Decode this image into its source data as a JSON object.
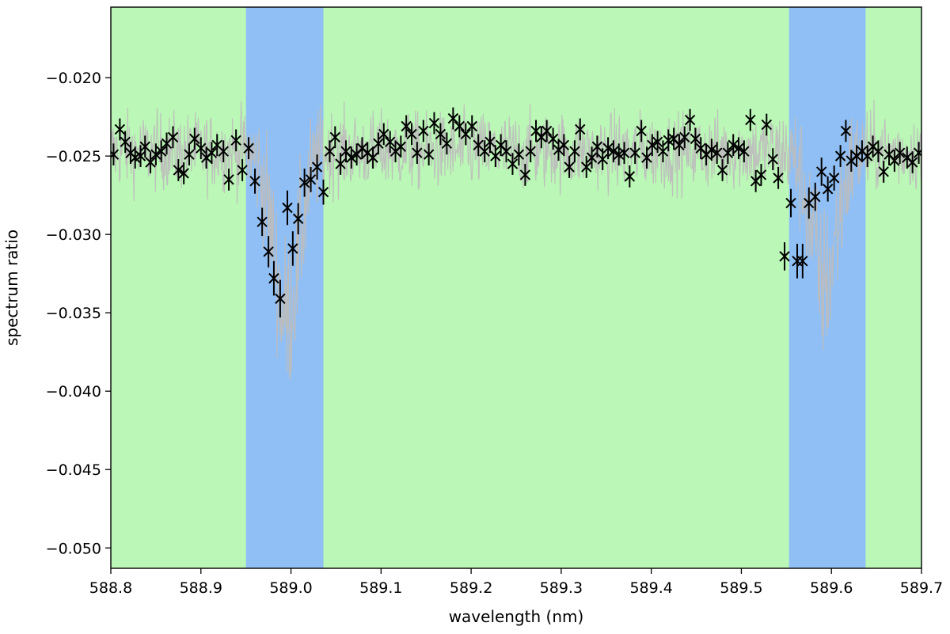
{
  "chart_data": {
    "type": "scatter",
    "title": "",
    "xlabel": "wavelength (nm)",
    "ylabel": "spectrum ratio",
    "xlim": [
      588.8,
      589.7
    ],
    "ylim": [
      -0.0513,
      -0.0155
    ],
    "grid": false,
    "legend": "none",
    "x_ticks": [
      588.8,
      588.9,
      589.0,
      589.1,
      589.2,
      589.3,
      589.4,
      589.5,
      589.6,
      589.7
    ],
    "x_tick_labels": [
      "588.8",
      "588.9",
      "589.0",
      "589.1",
      "589.2",
      "589.3",
      "589.4",
      "589.5",
      "589.6",
      "589.7"
    ],
    "y_ticks": [
      -0.02,
      -0.025,
      -0.03,
      -0.035,
      -0.04,
      -0.045,
      -0.05
    ],
    "y_tick_labels": [
      "−0.020",
      "−0.025",
      "−0.030",
      "−0.035",
      "−0.040",
      "−0.045",
      "−0.050"
    ],
    "background_color": "#bbf7b6",
    "bands": [
      {
        "x_start": 588.95,
        "x_end": 589.036,
        "color": "#90bff5"
      },
      {
        "x_start": 589.553,
        "x_end": 589.638,
        "color": "#90bff5"
      }
    ],
    "raw_spectrum": {
      "color": "#bdbdbd",
      "baseline": -0.0247,
      "noise_amplitude": 0.0022,
      "x_range": [
        588.8,
        589.7
      ],
      "absorption_lines": [
        {
          "center": 588.995,
          "depth": 0.0105,
          "width": 0.014
        },
        {
          "center": 589.592,
          "depth": 0.0085,
          "width": 0.014
        }
      ]
    },
    "binned_series": {
      "marker": "x",
      "color": "#000000",
      "points": [
        [
          588.803,
          -0.0249,
          0.0007
        ],
        [
          588.81,
          -0.0233,
          0.0007
        ],
        [
          588.816,
          -0.0241,
          0.0007
        ],
        [
          588.822,
          -0.0248,
          0.0007
        ],
        [
          588.827,
          -0.0251,
          0.0007
        ],
        [
          588.833,
          -0.025,
          0.0007
        ],
        [
          588.838,
          -0.0244,
          0.0007
        ],
        [
          588.844,
          -0.0254,
          0.0007
        ],
        [
          588.85,
          -0.0249,
          0.0007
        ],
        [
          588.856,
          -0.0247,
          0.0007
        ],
        [
          588.862,
          -0.0242,
          0.0007
        ],
        [
          588.869,
          -0.0238,
          0.0007
        ],
        [
          588.875,
          -0.0259,
          0.0007
        ],
        [
          588.881,
          -0.0261,
          0.0007
        ],
        [
          588.887,
          -0.0249,
          0.0007
        ],
        [
          588.893,
          -0.0239,
          0.0007
        ],
        [
          588.9,
          -0.0245,
          0.0007
        ],
        [
          588.906,
          -0.0251,
          0.0007
        ],
        [
          588.912,
          -0.0248,
          0.0007
        ],
        [
          588.918,
          -0.0243,
          0.0007
        ],
        [
          588.925,
          -0.0247,
          0.0007
        ],
        [
          588.931,
          -0.0265,
          0.0007
        ],
        [
          588.939,
          -0.024,
          0.0007
        ],
        [
          588.946,
          -0.0259,
          0.0007
        ],
        [
          588.953,
          -0.0245,
          0.0007
        ],
        [
          588.96,
          -0.0266,
          0.0008
        ],
        [
          588.968,
          -0.0292,
          0.0009
        ],
        [
          588.975,
          -0.0311,
          0.001
        ],
        [
          588.981,
          -0.0328,
          0.0011
        ],
        [
          588.988,
          -0.0341,
          0.0012
        ],
        [
          588.996,
          -0.0283,
          0.0011
        ],
        [
          589.002,
          -0.0309,
          0.0011
        ],
        [
          589.008,
          -0.029,
          0.001
        ],
        [
          589.015,
          -0.0267,
          0.0009
        ],
        [
          589.022,
          -0.0265,
          0.0008
        ],
        [
          589.029,
          -0.0257,
          0.0008
        ],
        [
          589.036,
          -0.0273,
          0.0008
        ],
        [
          589.043,
          -0.0247,
          0.0007
        ],
        [
          589.049,
          -0.0238,
          0.0007
        ],
        [
          589.055,
          -0.0255,
          0.0007
        ],
        [
          589.061,
          -0.0247,
          0.0007
        ],
        [
          589.067,
          -0.0251,
          0.0007
        ],
        [
          589.073,
          -0.0249,
          0.0007
        ],
        [
          589.079,
          -0.0245,
          0.0007
        ],
        [
          589.085,
          -0.0248,
          0.0007
        ],
        [
          589.091,
          -0.0251,
          0.0007
        ],
        [
          589.097,
          -0.0242,
          0.0007
        ],
        [
          589.103,
          -0.0236,
          0.0007
        ],
        [
          589.11,
          -0.0241,
          0.0007
        ],
        [
          589.116,
          -0.0247,
          0.0007
        ],
        [
          589.122,
          -0.0244,
          0.0007
        ],
        [
          589.128,
          -0.0231,
          0.0007
        ],
        [
          589.134,
          -0.0236,
          0.0007
        ],
        [
          589.14,
          -0.0248,
          0.0007
        ],
        [
          589.147,
          -0.0234,
          0.0007
        ],
        [
          589.153,
          -0.0249,
          0.0007
        ],
        [
          589.159,
          -0.0229,
          0.0007
        ],
        [
          589.166,
          -0.0236,
          0.0007
        ],
        [
          589.173,
          -0.0242,
          0.0007
        ],
        [
          589.18,
          -0.0226,
          0.0007
        ],
        [
          589.187,
          -0.0231,
          0.0007
        ],
        [
          589.194,
          -0.0236,
          0.0007
        ],
        [
          589.201,
          -0.0231,
          0.0007
        ],
        [
          589.208,
          -0.0243,
          0.0007
        ],
        [
          589.215,
          -0.0247,
          0.0007
        ],
        [
          589.221,
          -0.0241,
          0.0007
        ],
        [
          589.227,
          -0.025,
          0.0007
        ],
        [
          589.233,
          -0.0243,
          0.0007
        ],
        [
          589.239,
          -0.0247,
          0.0007
        ],
        [
          589.246,
          -0.0255,
          0.0007
        ],
        [
          589.253,
          -0.0249,
          0.0007
        ],
        [
          589.26,
          -0.0262,
          0.0007
        ],
        [
          589.266,
          -0.0247,
          0.0007
        ],
        [
          589.272,
          -0.0234,
          0.0007
        ],
        [
          589.278,
          -0.0238,
          0.0007
        ],
        [
          589.284,
          -0.0234,
          0.0007
        ],
        [
          589.291,
          -0.0239,
          0.0007
        ],
        [
          589.297,
          -0.0246,
          0.0007
        ],
        [
          589.303,
          -0.0243,
          0.0007
        ],
        [
          589.309,
          -0.0257,
          0.0007
        ],
        [
          589.315,
          -0.0247,
          0.0007
        ],
        [
          589.321,
          -0.0233,
          0.0007
        ],
        [
          589.328,
          -0.0257,
          0.0007
        ],
        [
          589.334,
          -0.0251,
          0.0007
        ],
        [
          589.34,
          -0.0244,
          0.0007
        ],
        [
          589.346,
          -0.0252,
          0.0007
        ],
        [
          589.352,
          -0.0245,
          0.0007
        ],
        [
          589.358,
          -0.0247,
          0.0007
        ],
        [
          589.364,
          -0.0249,
          0.0007
        ],
        [
          589.37,
          -0.0248,
          0.0007
        ],
        [
          589.376,
          -0.0263,
          0.0007
        ],
        [
          589.382,
          -0.0248,
          0.0007
        ],
        [
          589.389,
          -0.0234,
          0.0007
        ],
        [
          589.395,
          -0.0251,
          0.0007
        ],
        [
          589.401,
          -0.0243,
          0.0007
        ],
        [
          589.407,
          -0.0241,
          0.0007
        ],
        [
          589.413,
          -0.0247,
          0.0007
        ],
        [
          589.419,
          -0.024,
          0.0007
        ],
        [
          589.425,
          -0.0239,
          0.0007
        ],
        [
          589.431,
          -0.0243,
          0.0007
        ],
        [
          589.437,
          -0.0238,
          0.0007
        ],
        [
          589.443,
          -0.0227,
          0.0007
        ],
        [
          589.449,
          -0.0239,
          0.0007
        ],
        [
          589.455,
          -0.0245,
          0.0007
        ],
        [
          589.461,
          -0.0249,
          0.0007
        ],
        [
          589.467,
          -0.0246,
          0.0007
        ],
        [
          589.473,
          -0.0248,
          0.0007
        ],
        [
          589.479,
          -0.0259,
          0.0007
        ],
        [
          589.485,
          -0.0248,
          0.0007
        ],
        [
          589.491,
          -0.0243,
          0.0007
        ],
        [
          589.497,
          -0.0245,
          0.0007
        ],
        [
          589.503,
          -0.0247,
          0.0007
        ],
        [
          589.51,
          -0.0227,
          0.0007
        ],
        [
          589.516,
          -0.0266,
          0.0007
        ],
        [
          589.522,
          -0.0262,
          0.0007
        ],
        [
          589.528,
          -0.023,
          0.0007
        ],
        [
          589.535,
          -0.0252,
          0.0007
        ],
        [
          589.541,
          -0.0264,
          0.0007
        ],
        [
          589.548,
          -0.0314,
          0.0009
        ],
        [
          589.555,
          -0.028,
          0.0009
        ],
        [
          589.562,
          -0.0317,
          0.0011
        ],
        [
          589.568,
          -0.0317,
          0.0011
        ],
        [
          589.575,
          -0.028,
          0.001
        ],
        [
          589.582,
          -0.0276,
          0.0009
        ],
        [
          589.589,
          -0.026,
          0.0009
        ],
        [
          589.596,
          -0.0271,
          0.0008
        ],
        [
          589.603,
          -0.0264,
          0.0008
        ],
        [
          589.61,
          -0.025,
          0.0007
        ],
        [
          589.616,
          -0.0234,
          0.0007
        ],
        [
          589.622,
          -0.0253,
          0.0007
        ],
        [
          589.628,
          -0.025,
          0.0007
        ],
        [
          589.634,
          -0.0247,
          0.0007
        ],
        [
          589.64,
          -0.025,
          0.0007
        ],
        [
          589.646,
          -0.0244,
          0.0007
        ],
        [
          589.652,
          -0.0247,
          0.0007
        ],
        [
          589.658,
          -0.026,
          0.0007
        ],
        [
          589.664,
          -0.0249,
          0.0007
        ],
        [
          589.67,
          -0.0253,
          0.0007
        ],
        [
          589.676,
          -0.0248,
          0.0007
        ],
        [
          589.684,
          -0.0251,
          0.0007
        ],
        [
          589.69,
          -0.0254,
          0.0007
        ],
        [
          589.697,
          -0.0248,
          0.0007
        ]
      ]
    }
  }
}
